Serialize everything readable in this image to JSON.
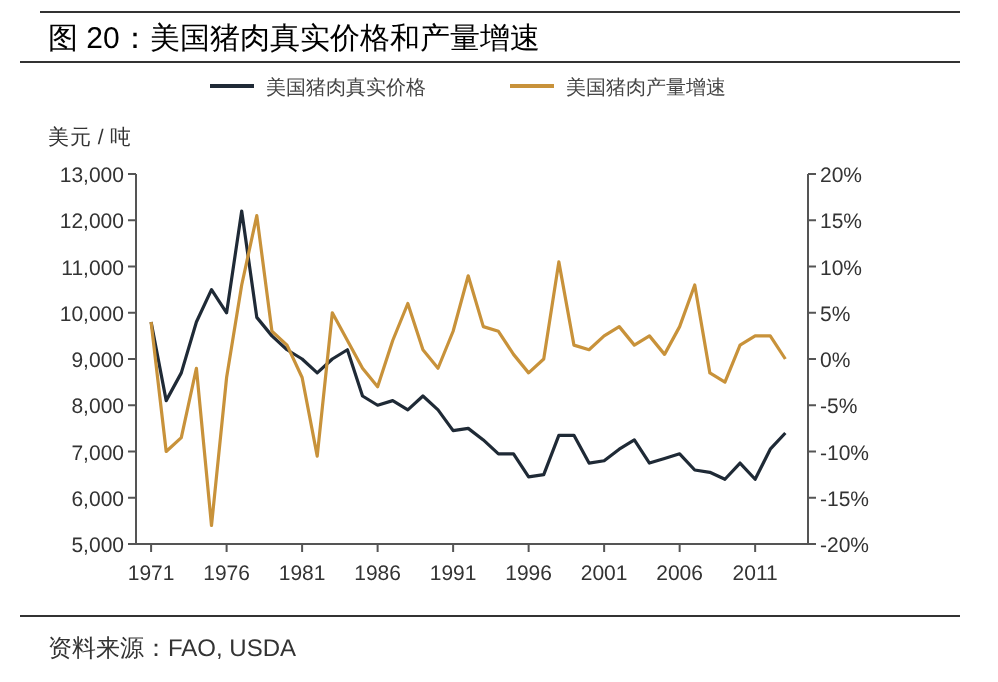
{
  "chart_data": {
    "type": "line",
    "title": "图 20：美国猪肉真实价格和产量增速",
    "ylabel": "美元 / 吨",
    "annotations": [
      "资料来源：FAO, USDA"
    ],
    "x": [
      1971,
      1972,
      1973,
      1974,
      1975,
      1976,
      1977,
      1978,
      1979,
      1980,
      1981,
      1982,
      1983,
      1984,
      1985,
      1986,
      1987,
      1988,
      1989,
      1990,
      1991,
      1992,
      1993,
      1994,
      1995,
      1996,
      1997,
      1998,
      1999,
      2000,
      2001,
      2002,
      2003,
      2004,
      2005,
      2006,
      2007,
      2008,
      2009,
      2010,
      2011,
      2012,
      2013
    ],
    "series": [
      {
        "name": "美国猪肉真实价格",
        "color": "#1f2a36",
        "values": [
          9800,
          8100,
          8700,
          9800,
          10500,
          10000,
          12200,
          9900,
          9500,
          9200,
          9000,
          8700,
          9000,
          9200,
          8200,
          8000,
          8100,
          7900,
          8200,
          7900,
          7450,
          7500,
          7250,
          6950,
          6950,
          6450,
          6500,
          7350,
          7350,
          6750,
          6800,
          7050,
          7250,
          6750,
          6850,
          6950,
          6600,
          6550,
          6400,
          6750,
          6400,
          7050,
          7400
        ]
      },
      {
        "name": "美国猪肉产量增速",
        "color": "#c8923a",
        "axis": "y2",
        "values": [
          4,
          -10,
          -8.5,
          -1,
          -18,
          -2,
          8,
          15.5,
          3,
          1.5,
          -2,
          -10.5,
          5,
          2,
          -1,
          -3,
          2,
          6,
          1,
          -1,
          3,
          9,
          3.5,
          3,
          0.5,
          -1.5,
          0,
          10.5,
          1.5,
          1,
          2.5,
          3.5,
          1.5,
          2.5,
          0.5,
          3.5,
          8,
          -1.5,
          -2.5,
          1.5,
          2.5,
          2.5,
          0
        ]
      }
    ],
    "xlim": [
      1970,
      2014.5
    ],
    "xticks": [
      1971,
      1976,
      1981,
      1986,
      1991,
      1996,
      2001,
      2006,
      2011
    ],
    "ylim": [
      5000,
      13000
    ],
    "yticks": [
      {
        "value": 5000,
        "label": "5,000"
      },
      {
        "value": 6000,
        "label": "6,000"
      },
      {
        "value": 7000,
        "label": "7,000"
      },
      {
        "value": 8000,
        "label": "8,000"
      },
      {
        "value": 9000,
        "label": "9,000"
      },
      {
        "value": 10000,
        "label": "10,000"
      },
      {
        "value": 11000,
        "label": "11,000"
      },
      {
        "value": 12000,
        "label": "12,000"
      },
      {
        "value": 13000,
        "label": "13,000"
      }
    ],
    "y2lim": [
      -20,
      20
    ],
    "y2ticks": [
      {
        "value": -20,
        "label": "-20%"
      },
      {
        "value": -15,
        "label": "-15%"
      },
      {
        "value": -10,
        "label": "-10%"
      },
      {
        "value": -5,
        "label": "-5%"
      },
      {
        "value": 0,
        "label": "0%"
      },
      {
        "value": 5,
        "label": "5%"
      },
      {
        "value": 10,
        "label": "10%"
      },
      {
        "value": 15,
        "label": "15%"
      },
      {
        "value": 20,
        "label": "20%"
      }
    ],
    "legend": "top",
    "grid": false,
    "line_style": "solid",
    "marker": "none"
  }
}
